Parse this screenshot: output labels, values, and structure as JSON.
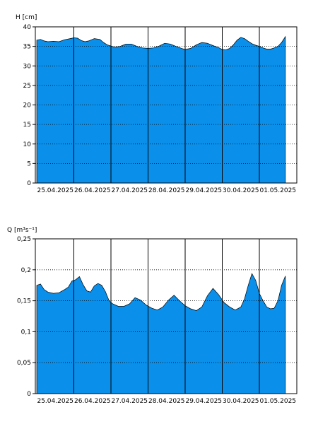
{
  "chart_data": [
    {
      "type": "area",
      "ylabel": "H [cm]",
      "ylim": [
        0,
        40
      ],
      "yticks": [
        "0",
        "5",
        "10",
        "15",
        "20",
        "25",
        "30",
        "35",
        "40"
      ],
      "xlim": [
        0,
        7
      ],
      "xtick_labels": [
        "25.04.2025",
        "26.04.2025",
        "27.04.2025",
        "28.04.2025",
        "29.04.2025",
        "30.04.2025",
        "01.05.2025"
      ],
      "grid": "horizontal dotted, vertical solid at day boundaries",
      "fill_color": "#0a8fea",
      "series": [
        {
          "x": [
            0.0,
            0.1,
            0.2,
            0.3,
            0.45,
            0.6,
            0.75,
            0.9,
            1.0,
            1.1,
            1.2,
            1.3,
            1.4,
            1.55,
            1.7,
            1.8,
            1.9,
            2.0,
            2.1,
            2.25,
            2.4,
            2.55,
            2.7,
            2.85,
            3.0,
            3.15,
            3.3,
            3.45,
            3.6,
            3.75,
            3.9,
            4.0,
            4.15,
            4.3,
            4.45,
            4.6,
            4.75,
            4.9,
            5.0,
            5.1,
            5.2,
            5.3,
            5.4,
            5.5,
            5.6,
            5.7,
            5.8,
            5.9,
            6.0,
            6.1,
            6.2,
            6.3,
            6.4,
            6.5,
            6.6,
            6.7
          ],
          "y": [
            36.6,
            36.8,
            36.4,
            36.2,
            36.3,
            36.2,
            36.7,
            37.0,
            37.2,
            37.1,
            36.5,
            36.2,
            36.4,
            37.0,
            36.8,
            36.0,
            35.4,
            35.1,
            34.8,
            35.0,
            35.6,
            35.6,
            35.0,
            34.6,
            34.5,
            34.6,
            35.1,
            35.8,
            35.6,
            35.0,
            34.5,
            34.2,
            34.5,
            35.4,
            36.0,
            35.8,
            35.2,
            34.7,
            34.2,
            34.1,
            34.5,
            35.4,
            36.6,
            37.3,
            37.0,
            36.3,
            35.7,
            35.3,
            35.0,
            34.6,
            34.3,
            34.3,
            34.6,
            35.0,
            36.0,
            37.5
          ]
        }
      ]
    },
    {
      "type": "area",
      "ylabel": "Q [m³s⁻¹]",
      "ylim": [
        0,
        0.25
      ],
      "yticks": [
        "0",
        "0,05",
        "0,1",
        "0,15",
        "0,2",
        "0,25"
      ],
      "xlim": [
        0,
        7
      ],
      "xtick_labels": [
        "25.04.2025",
        "26.04.2025",
        "27.04.2025",
        "28.04.2025",
        "29.04.2025",
        "30.04.2025",
        "01.05.2025"
      ],
      "grid": "horizontal dotted, vertical solid at day boundaries",
      "fill_color": "#0a8fea",
      "series": [
        {
          "x": [
            0.0,
            0.1,
            0.2,
            0.3,
            0.45,
            0.6,
            0.75,
            0.85,
            0.95,
            1.05,
            1.15,
            1.25,
            1.35,
            1.45,
            1.55,
            1.65,
            1.75,
            1.85,
            1.95,
            2.05,
            2.2,
            2.35,
            2.5,
            2.65,
            2.8,
            2.95,
            3.1,
            3.25,
            3.4,
            3.55,
            3.7,
            3.85,
            4.0,
            4.15,
            4.3,
            4.45,
            4.6,
            4.75,
            4.9,
            5.05,
            5.2,
            5.35,
            5.5,
            5.6,
            5.7,
            5.8,
            5.9,
            6.0,
            6.1,
            6.2,
            6.3,
            6.4,
            6.5,
            6.6,
            6.7
          ],
          "y": [
            0.175,
            0.177,
            0.168,
            0.164,
            0.162,
            0.163,
            0.168,
            0.172,
            0.182,
            0.184,
            0.189,
            0.176,
            0.166,
            0.164,
            0.174,
            0.178,
            0.175,
            0.165,
            0.15,
            0.145,
            0.141,
            0.141,
            0.145,
            0.155,
            0.151,
            0.143,
            0.138,
            0.135,
            0.14,
            0.151,
            0.159,
            0.15,
            0.142,
            0.137,
            0.134,
            0.14,
            0.158,
            0.17,
            0.16,
            0.147,
            0.14,
            0.135,
            0.14,
            0.153,
            0.175,
            0.194,
            0.183,
            0.162,
            0.15,
            0.14,
            0.137,
            0.138,
            0.15,
            0.175,
            0.19
          ]
        }
      ]
    }
  ]
}
